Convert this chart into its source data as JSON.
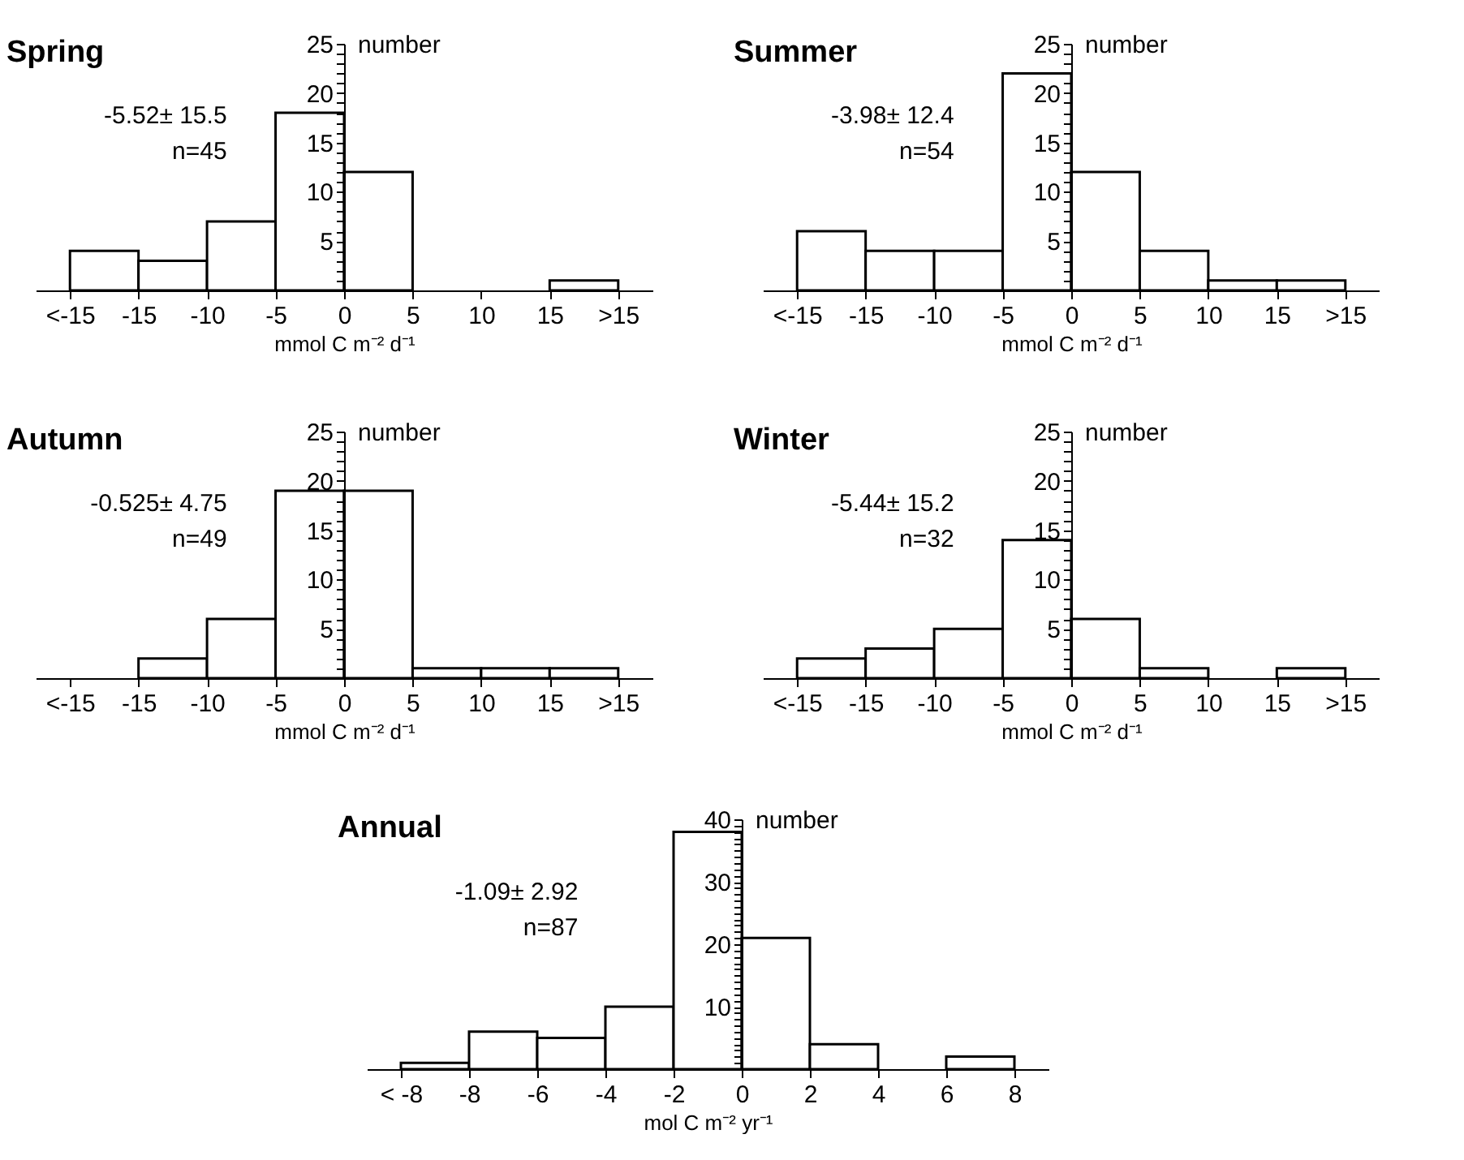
{
  "chart_data": [
    {
      "type": "histogram",
      "title": "Spring",
      "xlabel": "mmol C m⁻² d⁻¹",
      "ylabel": "number",
      "annotations": [
        "-5.52±  15.5",
        "n=45"
      ],
      "color": "#ffffff",
      "bins": [
        -20,
        -15,
        -10,
        -5,
        0,
        5,
        10,
        15,
        20
      ],
      "values": [
        4,
        3,
        7,
        18,
        12,
        0,
        0,
        1
      ],
      "xlim": [
        -22.5,
        22.5
      ],
      "xticks": [
        {
          "value": -20,
          "label": "<-15"
        },
        -15,
        -10,
        -5,
        0,
        5,
        10,
        15,
        {
          "value": 20,
          "label": ">15"
        }
      ],
      "ylim": [
        0,
        25
      ],
      "yticks": [
        {
          "value": 0,
          "label": null
        },
        {
          "value": 1,
          "label": null
        },
        {
          "value": 2,
          "label": null
        },
        {
          "value": 3,
          "label": null
        },
        {
          "value": 4,
          "label": null
        },
        5,
        {
          "value": 6,
          "label": null
        },
        {
          "value": 7,
          "label": null
        },
        {
          "value": 8,
          "label": null
        },
        {
          "value": 9,
          "label": null
        },
        10,
        {
          "value": 11,
          "label": null
        },
        {
          "value": 12,
          "label": null
        },
        {
          "value": 13,
          "label": null
        },
        {
          "value": 14,
          "label": null
        },
        15,
        {
          "value": 16,
          "label": null
        },
        {
          "value": 17,
          "label": null
        },
        {
          "value": 18,
          "label": null
        },
        {
          "value": 19,
          "label": null
        },
        20,
        {
          "value": 21,
          "label": null
        },
        {
          "value": 22,
          "label": null
        },
        {
          "value": 23,
          "label": null
        },
        {
          "value": 24,
          "label": null
        },
        25
      ]
    },
    {
      "type": "histogram",
      "title": "Summer",
      "xlabel": "mmol C m⁻² d⁻¹",
      "ylabel": "number",
      "annotations": [
        "-3.98±  12.4",
        "n=54"
      ],
      "color": "#ffffff",
      "bins": [
        -20,
        -15,
        -10,
        -5,
        0,
        5,
        10,
        15,
        20
      ],
      "values": [
        6,
        4,
        4,
        22,
        12,
        4,
        1,
        1
      ],
      "xlim": [
        -22.5,
        22.5
      ],
      "xticks": [
        {
          "value": -20,
          "label": "<-15"
        },
        -15,
        -10,
        -5,
        0,
        5,
        10,
        15,
        {
          "value": 20,
          "label": ">15"
        }
      ],
      "ylim": [
        0,
        25
      ],
      "yticks": [
        {
          "value": 0,
          "label": null
        },
        {
          "value": 1,
          "label": null
        },
        {
          "value": 2,
          "label": null
        },
        {
          "value": 3,
          "label": null
        },
        {
          "value": 4,
          "label": null
        },
        5,
        {
          "value": 6,
          "label": null
        },
        {
          "value": 7,
          "label": null
        },
        {
          "value": 8,
          "label": null
        },
        {
          "value": 9,
          "label": null
        },
        10,
        {
          "value": 11,
          "label": null
        },
        {
          "value": 12,
          "label": null
        },
        {
          "value": 13,
          "label": null
        },
        {
          "value": 14,
          "label": null
        },
        15,
        {
          "value": 16,
          "label": null
        },
        {
          "value": 17,
          "label": null
        },
        {
          "value": 18,
          "label": null
        },
        {
          "value": 19,
          "label": null
        },
        20,
        {
          "value": 21,
          "label": null
        },
        {
          "value": 22,
          "label": null
        },
        {
          "value": 23,
          "label": null
        },
        {
          "value": 24,
          "label": null
        },
        25
      ]
    },
    {
      "type": "histogram",
      "title": "Autumn",
      "xlabel": "mmol C m⁻² d⁻¹",
      "ylabel": "number",
      "annotations": [
        "-0.525±  4.75",
        "n=49"
      ],
      "color": "#ffffff",
      "bins": [
        -20,
        -15,
        -10,
        -5,
        0,
        5,
        10,
        15,
        20
      ],
      "values": [
        0,
        2,
        6,
        19,
        19,
        1,
        1,
        1
      ],
      "xlim": [
        -22.5,
        22.5
      ],
      "xticks": [
        {
          "value": -20,
          "label": "<-15"
        },
        -15,
        -10,
        -5,
        0,
        5,
        10,
        15,
        {
          "value": 20,
          "label": ">15"
        }
      ],
      "ylim": [
        0,
        25
      ],
      "yticks": [
        {
          "value": 0,
          "label": null
        },
        {
          "value": 1,
          "label": null
        },
        {
          "value": 2,
          "label": null
        },
        {
          "value": 3,
          "label": null
        },
        {
          "value": 4,
          "label": null
        },
        5,
        {
          "value": 6,
          "label": null
        },
        {
          "value": 7,
          "label": null
        },
        {
          "value": 8,
          "label": null
        },
        {
          "value": 9,
          "label": null
        },
        10,
        {
          "value": 11,
          "label": null
        },
        {
          "value": 12,
          "label": null
        },
        {
          "value": 13,
          "label": null
        },
        {
          "value": 14,
          "label": null
        },
        15,
        {
          "value": 16,
          "label": null
        },
        {
          "value": 17,
          "label": null
        },
        {
          "value": 18,
          "label": null
        },
        {
          "value": 19,
          "label": null
        },
        20,
        {
          "value": 21,
          "label": null
        },
        {
          "value": 22,
          "label": null
        },
        {
          "value": 23,
          "label": null
        },
        {
          "value": 24,
          "label": null
        },
        25
      ]
    },
    {
      "type": "histogram",
      "title": "Winter",
      "xlabel": "mmol C m⁻² d⁻¹",
      "ylabel": "number",
      "annotations": [
        "-5.44±  15.2",
        "n=32"
      ],
      "color": "#ffffff",
      "bins": [
        -20,
        -15,
        -10,
        -5,
        0,
        5,
        10,
        15,
        20
      ],
      "values": [
        2,
        3,
        5,
        14,
        6,
        1,
        0,
        1
      ],
      "xlim": [
        -22.5,
        22.5
      ],
      "xticks": [
        {
          "value": -20,
          "label": "<-15"
        },
        -15,
        -10,
        -5,
        0,
        5,
        10,
        15,
        {
          "value": 20,
          "label": ">15"
        }
      ],
      "ylim": [
        0,
        25
      ],
      "yticks": [
        {
          "value": 0,
          "label": null
        },
        {
          "value": 1,
          "label": null
        },
        {
          "value": 2,
          "label": null
        },
        {
          "value": 3,
          "label": null
        },
        {
          "value": 4,
          "label": null
        },
        5,
        {
          "value": 6,
          "label": null
        },
        {
          "value": 7,
          "label": null
        },
        {
          "value": 8,
          "label": null
        },
        {
          "value": 9,
          "label": null
        },
        10,
        {
          "value": 11,
          "label": null
        },
        {
          "value": 12,
          "label": null
        },
        {
          "value": 13,
          "label": null
        },
        {
          "value": 14,
          "label": null
        },
        15,
        {
          "value": 16,
          "label": null
        },
        {
          "value": 17,
          "label": null
        },
        {
          "value": 18,
          "label": null
        },
        {
          "value": 19,
          "label": null
        },
        20,
        {
          "value": 21,
          "label": null
        },
        {
          "value": 22,
          "label": null
        },
        {
          "value": 23,
          "label": null
        },
        {
          "value": 24,
          "label": null
        },
        25
      ]
    },
    {
      "type": "histogram",
      "title": "Annual",
      "xlabel": "mol C m⁻² yr⁻¹",
      "ylabel": "number",
      "annotations": [
        "-1.09±  2.92",
        "n=87"
      ],
      "color": "#ffffff",
      "bins": [
        -10,
        -8,
        -6,
        -4,
        -2,
        0,
        2,
        4,
        6,
        8
      ],
      "values": [
        1,
        6,
        5,
        10,
        38,
        21,
        4,
        0,
        2
      ],
      "xlim": [
        -11,
        9
      ],
      "xticks": [
        {
          "value": -10,
          "label": "< -8"
        },
        -8,
        -6,
        -4,
        -2,
        0,
        2,
        4,
        6,
        8
      ],
      "ylim": [
        0,
        40
      ],
      "yticks": [
        {
          "value": 0,
          "label": null
        },
        {
          "value": 1,
          "label": null
        },
        {
          "value": 2,
          "label": null
        },
        {
          "value": 3,
          "label": null
        },
        {
          "value": 4,
          "label": null
        },
        {
          "value": 5,
          "label": null
        },
        {
          "value": 6,
          "label": null
        },
        {
          "value": 7,
          "label": null
        },
        {
          "value": 8,
          "label": null
        },
        {
          "value": 9,
          "label": null
        },
        10,
        {
          "value": 11,
          "label": null
        },
        {
          "value": 12,
          "label": null
        },
        {
          "value": 13,
          "label": null
        },
        {
          "value": 14,
          "label": null
        },
        {
          "value": 15,
          "label": null
        },
        {
          "value": 16,
          "label": null
        },
        {
          "value": 17,
          "label": null
        },
        {
          "value": 18,
          "label": null
        },
        {
          "value": 19,
          "label": null
        },
        20,
        {
          "value": 21,
          "label": null
        },
        {
          "value": 22,
          "label": null
        },
        {
          "value": 23,
          "label": null
        },
        {
          "value": 24,
          "label": null
        },
        {
          "value": 25,
          "label": null
        },
        {
          "value": 26,
          "label": null
        },
        {
          "value": 27,
          "label": null
        },
        {
          "value": 28,
          "label": null
        },
        {
          "value": 29,
          "label": null
        },
        30,
        {
          "value": 31,
          "label": null
        },
        {
          "value": 32,
          "label": null
        },
        {
          "value": 33,
          "label": null
        },
        {
          "value": 34,
          "label": null
        },
        {
          "value": 35,
          "label": null
        },
        {
          "value": 36,
          "label": null
        },
        {
          "value": 37,
          "label": null
        },
        {
          "value": 38,
          "label": null
        },
        {
          "value": 39,
          "label": null
        },
        40
      ]
    }
  ]
}
